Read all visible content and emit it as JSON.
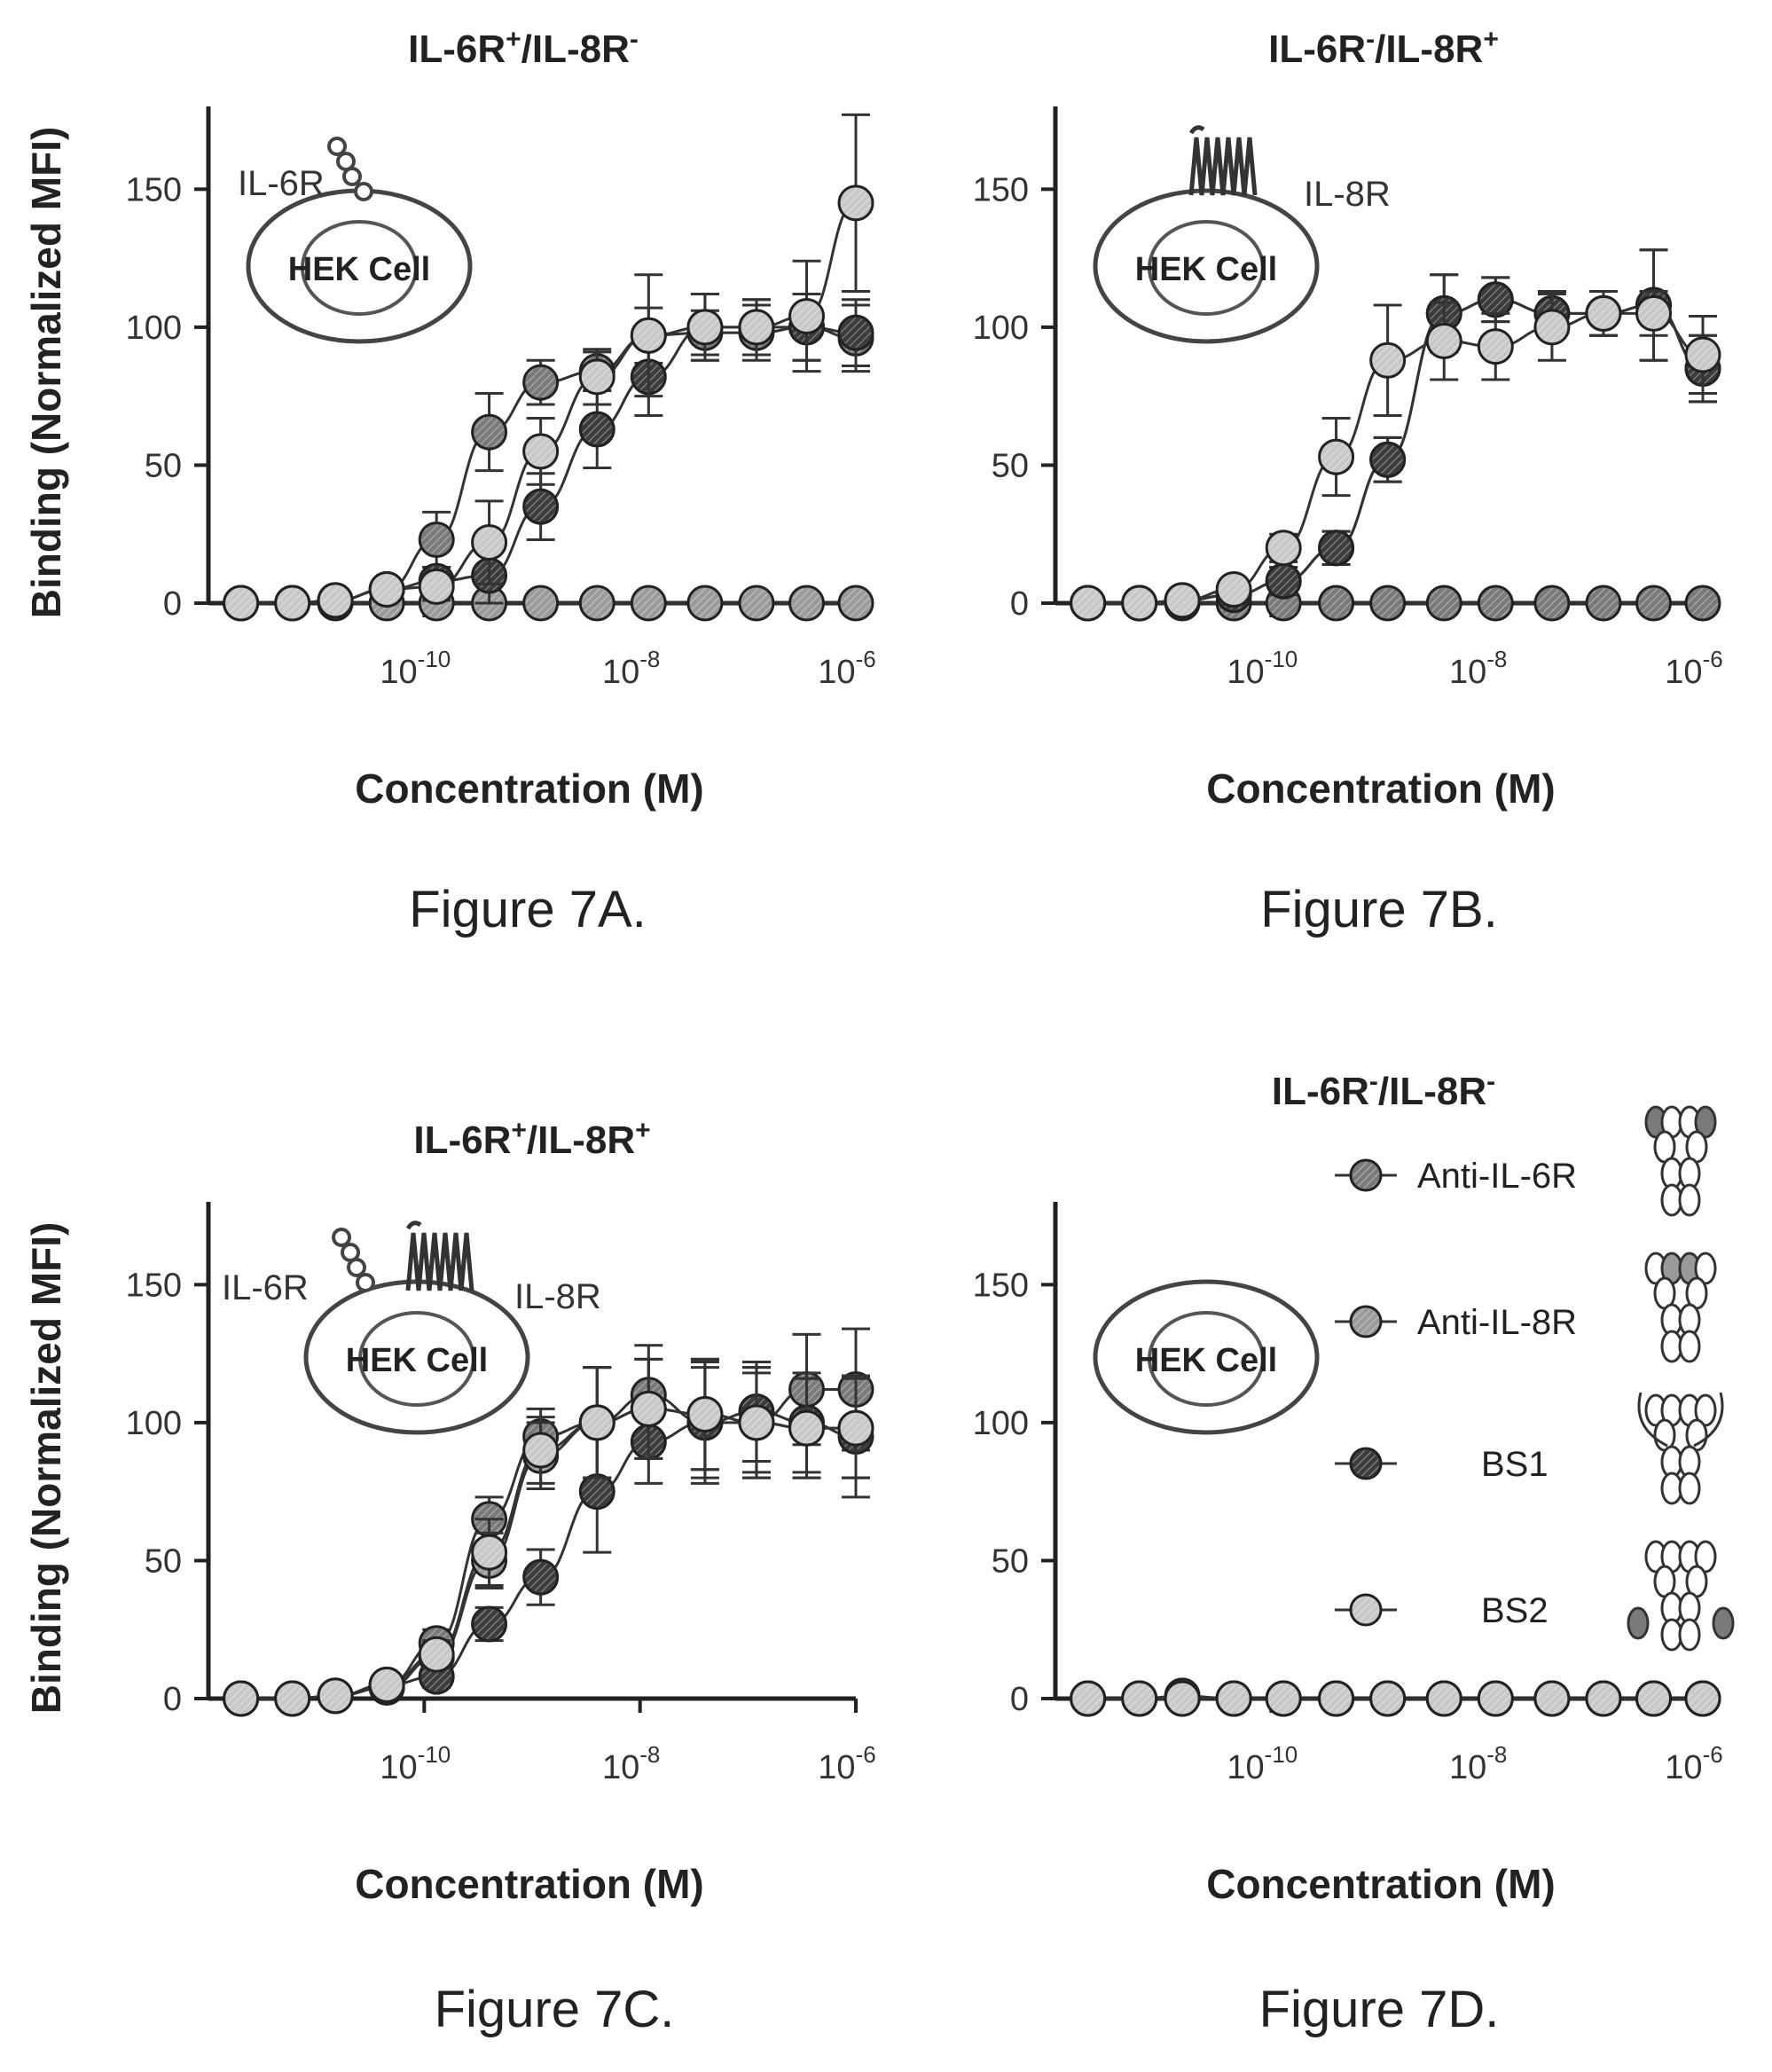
{
  "common": {
    "xlabel": "Concentration (M)",
    "ylabel": "Binding (Normalized MFI)",
    "xticks": [
      {
        "base": "10",
        "exp": "-10",
        "value": 1e-10
      },
      {
        "base": "10",
        "exp": "-8",
        "value": 1e-08
      },
      {
        "base": "10",
        "exp": "-6",
        "value": 1e-06
      }
    ],
    "yticks": [
      "0",
      "50",
      "100",
      "150"
    ]
  },
  "legend": [
    {
      "label": "Anti-IL-6R",
      "color": "#7a7a7a"
    },
    {
      "label": "Anti-IL-8R",
      "color": "#9a9a9a"
    },
    {
      "label": "BS1",
      "color": "#3c3c3c"
    },
    {
      "label": "BS2",
      "color": "#c8c8c8"
    }
  ],
  "panels": [
    {
      "id": "A",
      "title_main": "IL-6R",
      "title_s1": "+",
      "title_mid": "/IL-8R",
      "title_s2": "-",
      "caption": "Figure 7A.",
      "inset": {
        "cell": "HEK Cell",
        "left_label": "",
        "right_label": "",
        "il6r_label": "IL-6R",
        "il8r_label": ""
      }
    },
    {
      "id": "B",
      "title_main": "IL-6R",
      "title_s1": "-",
      "title_mid": "/IL-8R",
      "title_s2": "+",
      "caption": "Figure 7B.",
      "inset": {
        "cell": "HEK Cell",
        "il6r_label": "",
        "il8r_label": "IL-8R"
      }
    },
    {
      "id": "C",
      "title_main": "IL-6R",
      "title_s1": "+",
      "title_mid": "/IL-8R",
      "title_s2": "+",
      "caption": "Figure 7C.",
      "inset": {
        "cell": "HEK Cell",
        "il6r_label": "IL-6R",
        "il8r_label": "IL-8R"
      }
    },
    {
      "id": "D",
      "title_main": "IL-6R",
      "title_s1": "-",
      "title_mid": "/IL-8R",
      "title_s2": "-",
      "caption": "Figure 7D.",
      "inset": {
        "cell": "HEK Cell",
        "il6r_label": "",
        "il8r_label": ""
      }
    }
  ],
  "chart_data": [
    {
      "type": "scatter",
      "panel": "A",
      "xscale": "log",
      "xlim": [
        1e-12,
        1e-06
      ],
      "ylim": [
        0,
        180
      ],
      "xlabel": "Concentration (M)",
      "ylabel": "Binding (Normalized MFI)",
      "x": [
        2e-12,
        6e-12,
        1.5e-11,
        4.5e-11,
        1.3e-10,
        4e-10,
        1.2e-09,
        4e-09,
        1.2e-08,
        4e-08,
        1.2e-07,
        3.5e-07,
        1e-06
      ],
      "series": [
        {
          "name": "Anti-IL-6R",
          "values": [
            0,
            0,
            1,
            5,
            23,
            62,
            80,
            84,
            97,
            98,
            98,
            100,
            96
          ],
          "errors": [
            0,
            0,
            0,
            3,
            10,
            14,
            8,
            7,
            10,
            8,
            10,
            12,
            12
          ]
        },
        {
          "name": "Anti-IL-8R",
          "values": [
            0,
            0,
            0,
            0,
            0,
            0,
            0,
            0,
            0,
            0,
            0,
            0,
            0
          ],
          "errors": [
            0,
            0,
            0,
            0,
            0,
            0,
            0,
            0,
            0,
            0,
            0,
            0,
            0
          ]
        },
        {
          "name": "BS1",
          "values": [
            0,
            0,
            1,
            5,
            8,
            10,
            35,
            63,
            82,
            100,
            100,
            100,
            98
          ],
          "errors": [
            0,
            0,
            0,
            3,
            5,
            10,
            12,
            14,
            14,
            12,
            10,
            12,
            12
          ]
        },
        {
          "name": "BS2",
          "values": [
            0,
            0,
            1,
            5,
            6,
            22,
            55,
            82,
            97,
            100,
            100,
            104,
            145
          ],
          "errors": [
            0,
            0,
            0,
            3,
            5,
            15,
            12,
            10,
            22,
            12,
            10,
            20,
            32
          ]
        }
      ]
    },
    {
      "type": "scatter",
      "panel": "B",
      "xscale": "log",
      "xlim": [
        1e-12,
        1e-06
      ],
      "ylim": [
        0,
        180
      ],
      "xlabel": "Concentration (M)",
      "ylabel": "Binding (Normalized MFI)",
      "x": [
        2e-12,
        6e-12,
        1.5e-11,
        4.5e-11,
        1.3e-10,
        4e-10,
        1.2e-09,
        4e-09,
        1.2e-08,
        4e-08,
        1.2e-07,
        3.5e-07,
        1e-06
      ],
      "series": [
        {
          "name": "Anti-IL-6R",
          "values": [
            0,
            0,
            0,
            0,
            0,
            0,
            0,
            0,
            0,
            0,
            0,
            0,
            0
          ],
          "errors": [
            0,
            0,
            0,
            0,
            0,
            0,
            0,
            0,
            0,
            0,
            0,
            0,
            0
          ]
        },
        {
          "name": "Anti-IL-8R",
          "values": [
            0,
            0,
            1,
            3,
            8,
            20,
            52,
            105,
            110,
            105,
            105,
            108,
            85
          ],
          "errors": [
            0,
            0,
            0,
            3,
            5,
            6,
            8,
            14,
            8,
            8,
            8,
            20,
            12
          ]
        },
        {
          "name": "BS1",
          "values": [
            0,
            0,
            1,
            3,
            8,
            20,
            52,
            105,
            110,
            105,
            105,
            108,
            85
          ],
          "errors": [
            0,
            0,
            0,
            3,
            5,
            6,
            8,
            14,
            8,
            8,
            8,
            20,
            12
          ]
        },
        {
          "name": "BS2",
          "values": [
            0,
            0,
            1,
            5,
            20,
            53,
            88,
            95,
            93,
            100,
            105,
            105,
            90
          ],
          "errors": [
            0,
            0,
            0,
            3,
            5,
            14,
            20,
            14,
            12,
            12,
            8,
            8,
            14
          ]
        }
      ]
    },
    {
      "type": "scatter",
      "panel": "C",
      "xscale": "log",
      "xlim": [
        1e-12,
        1e-06
      ],
      "ylim": [
        0,
        180
      ],
      "xlabel": "Concentration (M)",
      "ylabel": "Binding (Normalized MFI)",
      "x": [
        2e-12,
        6e-12,
        1.5e-11,
        4.5e-11,
        1.3e-10,
        4e-10,
        1.2e-09,
        4e-09,
        1.2e-08,
        4e-08,
        1.2e-07,
        3.5e-07,
        1e-06
      ],
      "series": [
        {
          "name": "Anti-IL-6R",
          "values": [
            0,
            0,
            1,
            5,
            20,
            65,
            95,
            100,
            110,
            100,
            100,
            112,
            112
          ],
          "errors": [
            0,
            0,
            0,
            3,
            5,
            8,
            10,
            20,
            18,
            22,
            18,
            20,
            22
          ]
        },
        {
          "name": "Anti-IL-8R",
          "values": [
            0,
            0,
            1,
            4,
            15,
            50,
            88,
            100,
            105,
            103,
            100,
            98,
            98
          ],
          "errors": [
            0,
            0,
            0,
            3,
            5,
            10,
            12,
            20,
            18,
            20,
            20,
            18,
            18
          ]
        },
        {
          "name": "BS1",
          "values": [
            0,
            0,
            1,
            5,
            8,
            27,
            44,
            75,
            93,
            100,
            104,
            100,
            95
          ],
          "errors": [
            0,
            0,
            0,
            3,
            4,
            6,
            10,
            22,
            15,
            20,
            18,
            18,
            22
          ]
        },
        {
          "name": "BS2",
          "values": [
            0,
            0,
            1,
            5,
            16,
            53,
            90,
            100,
            105,
            103,
            100,
            98,
            98
          ],
          "errors": [
            0,
            0,
            0,
            3,
            5,
            12,
            12,
            20,
            18,
            20,
            20,
            18,
            18
          ]
        }
      ]
    },
    {
      "type": "scatter",
      "panel": "D",
      "xscale": "log",
      "xlim": [
        1e-12,
        1e-06
      ],
      "ylim": [
        0,
        180
      ],
      "xlabel": "Concentration (M)",
      "ylabel": "Binding (Normalized MFI)",
      "x": [
        2e-12,
        6e-12,
        1.5e-11,
        4.5e-11,
        1.3e-10,
        4e-10,
        1.2e-09,
        4e-09,
        1.2e-08,
        4e-08,
        1.2e-07,
        3.5e-07,
        1e-06
      ],
      "series": [
        {
          "name": "Anti-IL-6R",
          "values": [
            0,
            0,
            0,
            0,
            0,
            0,
            0,
            0,
            0,
            0,
            0,
            0,
            0
          ],
          "errors": [
            0,
            0,
            0,
            0,
            0,
            0,
            0,
            0,
            0,
            0,
            0,
            0,
            0
          ]
        },
        {
          "name": "Anti-IL-8R",
          "values": [
            0,
            0,
            1,
            0,
            0,
            0,
            0,
            0,
            0,
            0,
            0,
            0,
            0
          ],
          "errors": [
            0,
            0,
            0,
            0,
            0,
            0,
            0,
            0,
            0,
            0,
            0,
            0,
            0
          ]
        },
        {
          "name": "BS1",
          "values": [
            0,
            0,
            0,
            0,
            0,
            0,
            0,
            0,
            0,
            0,
            0,
            0,
            0
          ],
          "errors": [
            0,
            0,
            0,
            0,
            0,
            0,
            0,
            0,
            0,
            0,
            0,
            0,
            0
          ]
        },
        {
          "name": "BS2",
          "values": [
            0,
            0,
            0,
            0,
            0,
            0,
            0,
            0,
            0,
            0,
            0,
            0,
            0
          ],
          "errors": [
            0,
            0,
            0,
            0,
            0,
            0,
            0,
            0,
            0,
            0,
            0,
            0,
            0
          ]
        }
      ]
    }
  ]
}
